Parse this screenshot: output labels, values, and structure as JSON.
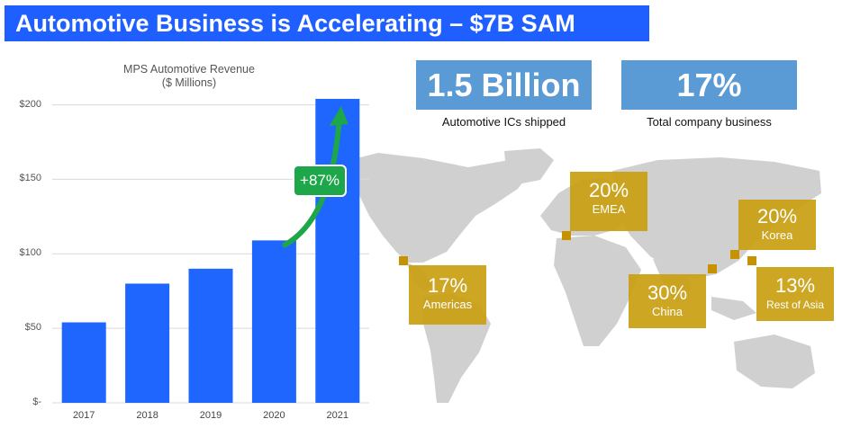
{
  "header": {
    "title": "Automotive Business is Accelerating – $7B SAM"
  },
  "chart_data": {
    "type": "bar",
    "title": "MPS Automotive Revenue",
    "subtitle": "($ Millions)",
    "categories": [
      "2017",
      "2018",
      "2019",
      "2020",
      "2021"
    ],
    "values": [
      54,
      80,
      90,
      109,
      204
    ],
    "ylim": [
      0,
      210
    ],
    "yticks": [
      0,
      50,
      100,
      150,
      200
    ],
    "ytick_labels": [
      "$-",
      "$50",
      "$100",
      "$150",
      "$200"
    ],
    "bar_color": "#1f66ff",
    "grid": true,
    "annotation": {
      "text": "+87%",
      "color": "#1ea64a"
    }
  },
  "stats": [
    {
      "value": "1.5 Billion",
      "label": "Automotive ICs shipped"
    },
    {
      "value": "17%",
      "label": "Total company business"
    }
  ],
  "regions": [
    {
      "pct": "20%",
      "name": "EMEA"
    },
    {
      "pct": "17%",
      "name": "Americas"
    },
    {
      "pct": "30%",
      "name": "China"
    },
    {
      "pct": "20%",
      "name": "Korea"
    },
    {
      "pct": "13%",
      "name": "Rest of Asia"
    }
  ],
  "colors": {
    "title_bg": "#1f5fff",
    "stat_bg": "#5b9bd5",
    "region_bg": "#c99f11",
    "map": "#d0d0d0"
  }
}
